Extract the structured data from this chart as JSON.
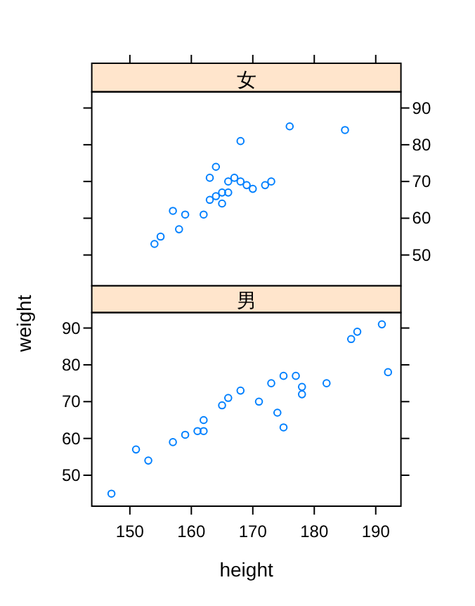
{
  "chart_data": [
    {
      "type": "scatter",
      "title": "女",
      "marker": "circle",
      "grid": false,
      "tick_labels": "y",
      "xlim": [
        143.8,
        194.1
      ],
      "ylim": [
        41.6,
        94.4
      ],
      "xticks": [
        {
          "value": 150,
          "label": null
        },
        {
          "value": 160,
          "label": null
        },
        {
          "value": 170,
          "label": null
        },
        {
          "value": 180,
          "label": null
        },
        {
          "value": 190,
          "label": null
        }
      ],
      "yticks": [
        50,
        60,
        70,
        80,
        90
      ],
      "series": [
        {
          "color": "#0080ff",
          "x": [
            176,
            185,
            168,
            164,
            163,
            167,
            166,
            168,
            169,
            170,
            172,
            173,
            165,
            164,
            163,
            166,
            165,
            162,
            159,
            157,
            158,
            155,
            154
          ],
          "values": [
            85,
            84,
            81,
            74,
            71,
            71,
            70,
            70,
            69,
            68,
            69,
            70,
            67,
            66,
            65,
            67,
            64,
            61,
            61,
            62,
            57,
            55,
            53
          ]
        }
      ]
    },
    {
      "type": "scatter",
      "title": "男",
      "xlabel": "height",
      "ylabel": "weight",
      "marker": "circle",
      "grid": false,
      "xlim": [
        143.8,
        194.1
      ],
      "ylim": [
        41.6,
        94.2
      ],
      "xticks": [
        150,
        160,
        170,
        180,
        190
      ],
      "yticks": [
        50,
        60,
        70,
        80,
        90
      ],
      "series": [
        {
          "color": "#0080ff",
          "x": [
            147,
            151,
            153,
            157,
            159,
            161,
            162,
            162,
            165,
            166,
            168,
            171,
            173,
            174,
            175,
            175,
            177,
            178,
            178,
            182,
            186,
            187,
            191,
            192
          ],
          "values": [
            45,
            57,
            54,
            59,
            61,
            62,
            62,
            65,
            69,
            71,
            73,
            70,
            75,
            67,
            63,
            77,
            77,
            74,
            72,
            75,
            87,
            89,
            91,
            78
          ]
        }
      ]
    }
  ]
}
